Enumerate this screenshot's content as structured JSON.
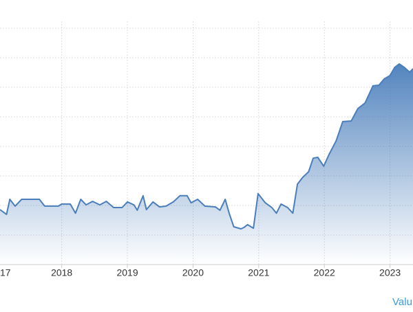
{
  "chart_data": {
    "type": "area",
    "x": [
      2017.06,
      2017.16,
      2017.21,
      2017.29,
      2017.39,
      2017.66,
      2017.74,
      2017.95,
      2018.0,
      2018.13,
      2018.21,
      2018.29,
      2018.37,
      2018.47,
      2018.58,
      2018.68,
      2018.79,
      2018.92,
      2019.0,
      2019.1,
      2019.15,
      2019.24,
      2019.29,
      2019.39,
      2019.49,
      2019.59,
      2019.7,
      2019.8,
      2019.91,
      2019.97,
      2020.07,
      2020.18,
      2020.34,
      2020.41,
      2020.49,
      2020.55,
      2020.62,
      2020.73,
      2020.78,
      2020.83,
      2020.92,
      2020.99,
      2021.1,
      2021.2,
      2021.27,
      2021.34,
      2021.44,
      2021.52,
      2021.59,
      2021.67,
      2021.76,
      2021.83,
      2021.9,
      2021.99,
      2022.07,
      2022.18,
      2022.28,
      2022.41,
      2022.51,
      2022.62,
      2022.74,
      2022.83,
      2022.91,
      2023.0,
      2023.07,
      2023.14,
      2023.22,
      2023.3,
      2023.35
    ],
    "series": [
      {
        "name": "Valu",
        "color": "#4a7ebb",
        "values": [
          1.86,
          1.7,
          2.21,
          1.98,
          2.21,
          2.21,
          1.98,
          1.98,
          2.05,
          2.05,
          1.74,
          2.21,
          2.02,
          2.14,
          2.02,
          2.14,
          1.93,
          1.93,
          2.12,
          2.02,
          1.84,
          2.33,
          1.86,
          2.12,
          1.95,
          1.98,
          2.12,
          2.33,
          2.33,
          2.09,
          2.21,
          1.98,
          1.95,
          1.84,
          2.21,
          1.74,
          1.28,
          1.21,
          1.26,
          1.35,
          1.23,
          2.4,
          2.09,
          1.93,
          1.74,
          2.05,
          1.93,
          1.74,
          2.72,
          2.95,
          3.14,
          3.6,
          3.63,
          3.33,
          3.72,
          4.19,
          4.84,
          4.86,
          5.28,
          5.47,
          6.05,
          6.07,
          6.28,
          6.4,
          6.67,
          6.79,
          6.67,
          6.51,
          6.63
        ]
      }
    ],
    "xlim": [
      2017.06,
      2023.35
    ],
    "xticks": [
      {
        "value": 2017,
        "label": "17"
      },
      2018,
      2019,
      2020,
      2021,
      2022,
      2023
    ],
    "ylim": [
      0,
      8
    ],
    "ygrid": [
      1,
      2,
      3,
      4,
      5,
      6,
      7,
      8
    ],
    "grid": true
  }
}
